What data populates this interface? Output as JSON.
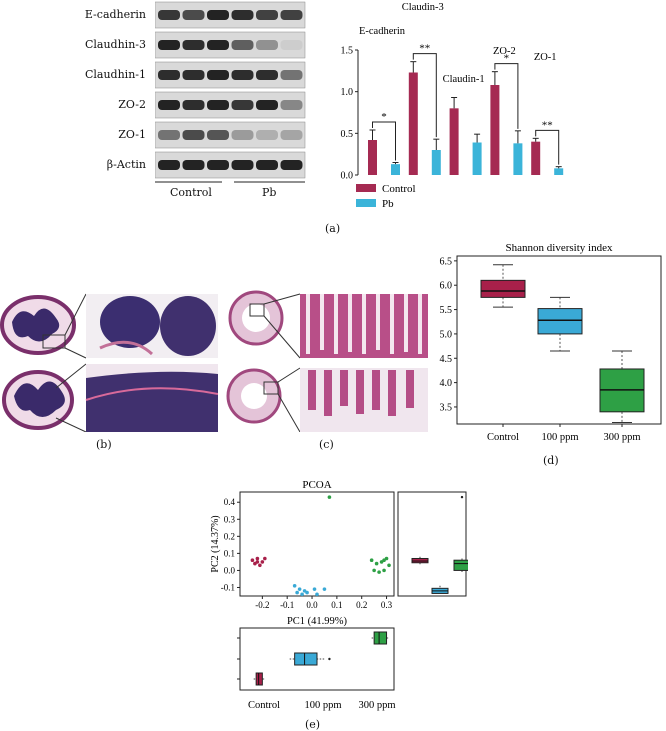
{
  "colors": {
    "control": "#a52a52",
    "pb": "#3bb4d9",
    "green": "#2ea045",
    "blue": "#3aa9d6",
    "crimson": "#a8204a",
    "grey_bg": "#eeeeee"
  },
  "panel_a": {
    "label": "(a)",
    "blot_rows": [
      "E-cadherin",
      "Claudhin-3",
      "Claudhin-1",
      "ZO-2",
      "ZO-1",
      "β-Actin"
    ],
    "group_labels": [
      "Control",
      "Pb"
    ],
    "legend": [
      "Control",
      "Pb"
    ]
  },
  "panel_b": {
    "label": "(b)"
  },
  "panel_c": {
    "label": "(c)"
  },
  "panel_d": {
    "label": "(d)"
  },
  "panel_e": {
    "label": "(e)"
  },
  "chart_data": [
    {
      "type": "bar",
      "categories": [
        "E-cadherin",
        "Claudin-3",
        "Claudin-1",
        "ZO-2",
        "ZO-1"
      ],
      "series": [
        {
          "name": "Control",
          "values": [
            0.42,
            1.23,
            0.8,
            1.08,
            0.4
          ],
          "errors": [
            0.12,
            0.13,
            0.13,
            0.16,
            0.04
          ]
        },
        {
          "name": "Pb",
          "values": [
            0.13,
            0.3,
            0.39,
            0.38,
            0.08
          ],
          "errors": [
            0.02,
            0.13,
            0.1,
            0.15,
            0.02
          ]
        }
      ],
      "significance": [
        "*",
        "**",
        "",
        "*",
        "**"
      ],
      "ylim": [
        0,
        1.5
      ],
      "yticks": [
        "0.0",
        "0.5",
        "1.0",
        "1.5"
      ]
    },
    {
      "type": "box",
      "title": "Shannon diversity index",
      "categories": [
        "Control",
        "100 ppm",
        "300 ppm"
      ],
      "boxes": [
        {
          "min": 5.55,
          "q1": 5.75,
          "median": 5.88,
          "q3": 6.1,
          "max": 6.42
        },
        {
          "min": 4.65,
          "q1": 5.0,
          "median": 5.28,
          "q3": 5.52,
          "max": 5.75
        },
        {
          "min": 3.18,
          "q1": 3.4,
          "median": 3.85,
          "q3": 4.28,
          "max": 4.65
        }
      ],
      "ylim": [
        3.15,
        6.6
      ],
      "yticks": [
        "3.5",
        "4.0",
        "4.5",
        "5.0",
        "5.5",
        "6.0",
        "6.5"
      ]
    },
    {
      "type": "scatter",
      "title": "PCOA",
      "xlabel": "PC1 (41.99%)",
      "ylabel": "PC2 (14.37%)",
      "xlim": [
        -0.29,
        0.33
      ],
      "ylim": [
        -0.15,
        0.46
      ],
      "xticks": [
        "-0.2",
        "-0.1",
        "0.0",
        "0.1",
        "0.2",
        "0.3"
      ],
      "yticks": [
        "-0.1",
        "0.0",
        "0.1",
        "0.2",
        "0.3",
        "0.4"
      ],
      "series": [
        {
          "group": "Control",
          "points": [
            [
              -0.24,
              0.06
            ],
            [
              -0.23,
              0.04
            ],
            [
              -0.22,
              0.07
            ],
            [
              -0.21,
              0.03
            ],
            [
              -0.2,
              0.05
            ],
            [
              -0.19,
              0.07
            ],
            [
              -0.22,
              0.05
            ]
          ]
        },
        {
          "group": "100 ppm",
          "points": [
            [
              -0.07,
              -0.09
            ],
            [
              -0.06,
              -0.13
            ],
            [
              -0.05,
              -0.11
            ],
            [
              -0.04,
              -0.14
            ],
            [
              -0.03,
              -0.12
            ],
            [
              -0.02,
              -0.13
            ],
            [
              0.01,
              -0.11
            ],
            [
              0.02,
              -0.14
            ],
            [
              0.05,
              -0.11
            ]
          ]
        },
        {
          "group": "300 ppm",
          "points": [
            [
              0.07,
              0.43
            ],
            [
              0.24,
              0.06
            ],
            [
              0.25,
              0.0
            ],
            [
              0.26,
              0.04
            ],
            [
              0.27,
              -0.01
            ],
            [
              0.28,
              0.05
            ],
            [
              0.29,
              0.0
            ],
            [
              0.3,
              0.07
            ],
            [
              0.31,
              0.03
            ],
            [
              0.29,
              0.06
            ]
          ]
        }
      ]
    },
    {
      "type": "box",
      "orientation": "horizontal",
      "categories": [
        "Control",
        "100 ppm",
        "300 ppm"
      ],
      "boxes": [
        {
          "min": -0.235,
          "q1": -0.225,
          "median": -0.215,
          "q3": -0.2,
          "max": -0.19
        },
        {
          "min": -0.09,
          "q1": -0.07,
          "median": -0.03,
          "q3": 0.02,
          "max": 0.05
        },
        {
          "min": 0.24,
          "q1": 0.25,
          "median": 0.27,
          "q3": 0.3,
          "max": 0.31
        }
      ],
      "outliers": [
        [
          1,
          0.07
        ]
      ]
    }
  ]
}
